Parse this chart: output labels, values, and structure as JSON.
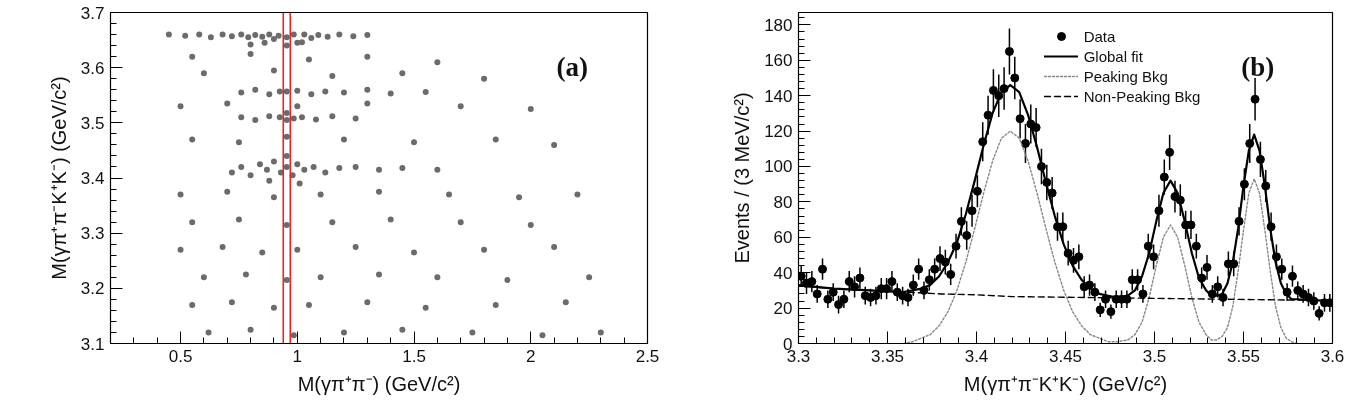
{
  "chart_data": [
    {
      "type": "scatter",
      "xlabel": "M(γπ⁺π⁻) (GeV/c²)",
      "ylabel": "M(γπ⁺π⁻K⁺K⁻) (GeV/c²)",
      "annotations": [
        "(a)"
      ],
      "color": "#6b6b6b",
      "marker": "circle",
      "x": [
        0.45,
        0.52,
        0.58,
        0.63,
        0.68,
        0.72,
        0.76,
        0.79,
        0.82,
        0.85,
        0.88,
        0.9,
        0.92,
        0.955,
        0.985,
        1.0,
        1.03,
        1.06,
        1.09,
        1.13,
        1.18,
        1.24,
        1.3,
        0.86,
        0.955,
        1.02,
        0.8,
        0.76,
        0.82,
        0.88,
        0.925,
        0.955,
        1.0,
        1.06,
        1.12,
        1.2,
        1.3,
        1.4,
        1.55,
        0.76,
        0.82,
        0.88,
        0.925,
        0.955,
        0.955,
        0.985,
        1.02,
        1.08,
        1.15,
        1.25,
        0.72,
        0.76,
        0.8,
        0.84,
        0.87,
        0.9,
        0.93,
        0.955,
        0.98,
        1.0,
        1.03,
        1.07,
        1.12,
        1.18,
        1.25,
        1.35,
        1.45,
        1.6,
        0.88,
        0.955,
        1.01,
        0.55,
        0.8,
        1.05,
        1.3,
        1.6,
        0.6,
        0.9,
        1.15,
        1.45,
        1.8,
        0.5,
        0.7,
        1.0,
        1.3,
        1.7,
        2.0,
        0.55,
        0.75,
        0.955,
        1.2,
        1.5,
        1.85,
        2.1,
        0.5,
        0.7,
        0.9,
        1.1,
        1.35,
        1.65,
        1.95,
        2.2,
        0.55,
        0.75,
        0.955,
        1.15,
        1.4,
        1.7,
        2.0,
        0.5,
        0.68,
        0.85,
        1.0,
        1.25,
        1.5,
        1.8,
        2.1,
        0.6,
        0.78,
        0.955,
        1.1,
        1.35,
        1.6,
        1.9,
        2.25,
        0.55,
        0.72,
        0.9,
        1.05,
        1.3,
        1.55,
        1.85,
        2.15,
        0.62,
        0.8,
        0.985,
        1.2,
        1.45,
        1.75,
        2.05,
        2.3
      ],
      "values": [
        3.66,
        3.658,
        3.66,
        3.655,
        3.66,
        3.657,
        3.66,
        3.655,
        3.659,
        3.656,
        3.66,
        3.652,
        3.658,
        3.655,
        3.66,
        3.645,
        3.66,
        3.654,
        3.659,
        3.656,
        3.66,
        3.657,
        3.659,
        3.645,
        3.64,
        3.646,
        3.642,
        3.555,
        3.56,
        3.552,
        3.557,
        3.557,
        3.558,
        3.552,
        3.557,
        3.555,
        3.56,
        3.553,
        3.556,
        3.51,
        3.505,
        3.512,
        3.51,
        3.505,
        3.518,
        3.508,
        3.51,
        3.506,
        3.512,
        3.508,
        3.41,
        3.42,
        3.405,
        3.425,
        3.415,
        3.43,
        3.41,
        3.42,
        3.405,
        3.425,
        3.415,
        3.42,
        3.41,
        3.418,
        3.42,
        3.415,
        3.418,
        3.415,
        3.395,
        3.44,
        3.39,
        3.62,
        3.625,
        3.615,
        3.62,
        3.61,
        3.59,
        3.595,
        3.585,
        3.59,
        3.58,
        3.53,
        3.535,
        3.53,
        3.535,
        3.53,
        3.525,
        3.47,
        3.465,
        3.475,
        3.47,
        3.465,
        3.47,
        3.46,
        3.37,
        3.375,
        3.365,
        3.37,
        3.375,
        3.37,
        3.365,
        3.37,
        3.32,
        3.325,
        3.315,
        3.32,
        3.325,
        3.32,
        3.315,
        3.27,
        3.275,
        3.265,
        3.27,
        3.275,
        3.265,
        3.27,
        3.275,
        3.22,
        3.225,
        3.215,
        3.22,
        3.225,
        3.22,
        3.215,
        3.22,
        3.17,
        3.175,
        3.165,
        3.17,
        3.175,
        3.165,
        3.17,
        3.175,
        3.12,
        3.125,
        3.115,
        3.12,
        3.125,
        3.12,
        3.115,
        3.12
      ],
      "xlim": [
        0.2,
        2.5
      ],
      "ylim": [
        3.1,
        3.7
      ],
      "xticks": [
        0.5,
        1,
        1.5,
        2,
        2.5
      ],
      "yticks": [
        3.1,
        3.2,
        3.3,
        3.4,
        3.5,
        3.6,
        3.7
      ],
      "ref_lines": [
        {
          "axis": "x",
          "value": 0.94,
          "color": "#e8242b"
        },
        {
          "axis": "x",
          "value": 0.97,
          "color": "#e8242b"
        }
      ]
    },
    {
      "type": "scatter",
      "xlabel": "M(γπ⁺π⁻K⁺K⁻) (GeV/c²)",
      "ylabel": "Events / (3 MeV/c²)",
      "annotations": [
        "(b)"
      ],
      "legend": "top right",
      "xlim": [
        3.3,
        3.6
      ],
      "ylim": [
        0,
        187
      ],
      "xticks": [
        3.3,
        3.35,
        3.4,
        3.45,
        3.5,
        3.55,
        3.6
      ],
      "yticks": [
        0,
        20,
        40,
        60,
        80,
        100,
        120,
        140,
        160,
        180
      ],
      "series": [
        {
          "name": "Data",
          "type": "scatter",
          "color": "#000000",
          "marker": "circle",
          "x": [
            3.3015,
            3.3045,
            3.3075,
            3.3105,
            3.3135,
            3.3165,
            3.3195,
            3.3225,
            3.3255,
            3.3285,
            3.3315,
            3.3345,
            3.3375,
            3.3405,
            3.3435,
            3.3465,
            3.3495,
            3.3525,
            3.3555,
            3.3585,
            3.3615,
            3.3645,
            3.3675,
            3.3705,
            3.3735,
            3.3765,
            3.3795,
            3.3825,
            3.3855,
            3.3885,
            3.3915,
            3.3945,
            3.3975,
            3.4005,
            3.4035,
            3.4065,
            3.4095,
            3.4125,
            3.4155,
            3.4185,
            3.4215,
            3.4245,
            3.4275,
            3.4305,
            3.4335,
            3.4365,
            3.4395,
            3.4425,
            3.4455,
            3.4485,
            3.4515,
            3.4545,
            3.4575,
            3.4605,
            3.4635,
            3.4665,
            3.4695,
            3.4725,
            3.4755,
            3.4785,
            3.4815,
            3.4845,
            3.4875,
            3.4905,
            3.4935,
            3.4965,
            3.4995,
            3.5025,
            3.5055,
            3.5085,
            3.5115,
            3.5145,
            3.5175,
            3.5205,
            3.5235,
            3.5265,
            3.5295,
            3.5325,
            3.5355,
            3.5385,
            3.5415,
            3.5445,
            3.5475,
            3.5505,
            3.5535,
            3.5565,
            3.5595,
            3.5625,
            3.5655,
            3.5685,
            3.5715,
            3.5745,
            3.5775,
            3.5805,
            3.5835,
            3.5865,
            3.5895,
            3.5925,
            3.5955,
            3.5985
          ],
          "values": [
            38,
            34,
            35,
            28,
            42,
            25,
            29,
            22,
            25,
            35,
            32,
            37,
            27,
            26,
            27,
            31,
            31,
            35,
            29,
            27,
            26,
            33,
            42,
            30,
            36,
            42,
            48,
            46,
            39,
            55,
            69,
            61,
            75,
            86,
            114,
            129,
            143,
            140,
            144,
            165,
            150,
            127,
            113,
            124,
            122,
            100,
            91,
            85,
            66,
            66,
            51,
            47,
            49,
            32,
            33,
            29,
            19,
            25,
            18,
            25,
            25,
            25,
            36,
            36,
            28,
            55,
            49,
            75,
            94,
            108,
            83,
            81,
            67,
            67,
            55,
            37,
            43,
            28,
            32,
            26,
            45,
            45,
            69,
            90,
            113,
            138,
            104,
            89,
            66,
            49,
            42,
            29,
            38,
            30,
            28,
            26,
            24,
            17,
            23,
            23
          ],
          "errors": [
            6,
            6,
            6,
            5,
            6,
            5,
            5,
            5,
            5,
            6,
            6,
            6,
            5,
            5,
            5,
            6,
            6,
            6,
            5,
            5,
            5,
            6,
            6,
            5,
            6,
            6,
            7,
            7,
            6,
            7,
            8,
            8,
            9,
            9,
            11,
            11,
            12,
            12,
            12,
            13,
            12,
            11,
            11,
            11,
            11,
            10,
            10,
            9,
            8,
            8,
            7,
            7,
            7,
            6,
            6,
            5,
            4,
            5,
            4,
            5,
            5,
            5,
            6,
            6,
            5,
            7,
            7,
            9,
            10,
            10,
            9,
            9,
            8,
            8,
            7,
            6,
            7,
            5,
            6,
            5,
            7,
            7,
            8,
            9,
            11,
            12,
            10,
            9,
            8,
            7,
            6,
            5,
            6,
            5,
            5,
            5,
            5,
            4,
            5,
            5
          ]
        },
        {
          "name": "Global fit",
          "type": "line",
          "color": "#000000",
          "line_style": "solid",
          "x": [
            3.3,
            3.32,
            3.34,
            3.359,
            3.364,
            3.369,
            3.374,
            3.379,
            3.384,
            3.389,
            3.394,
            3.399,
            3.404,
            3.409,
            3.414,
            3.419,
            3.424,
            3.429,
            3.434,
            3.439,
            3.444,
            3.449,
            3.454,
            3.459,
            3.464,
            3.469,
            3.474,
            3.479,
            3.485,
            3.489,
            3.493,
            3.497,
            3.501,
            3.505,
            3.509,
            3.513,
            3.517,
            3.521,
            3.525,
            3.529,
            3.532,
            3.535,
            3.538,
            3.541,
            3.544,
            3.547,
            3.55,
            3.553,
            3.556,
            3.559,
            3.562,
            3.565,
            3.568,
            3.571,
            3.574,
            3.577,
            3.58,
            3.6
          ],
          "values": [
            33,
            31,
            30,
            29,
            30,
            31,
            33,
            38,
            46,
            57,
            73,
            92,
            112,
            130,
            142,
            146,
            142,
            129,
            111,
            91,
            72,
            56,
            44,
            36,
            31,
            28,
            27,
            26,
            27,
            30,
            38,
            51,
            69,
            85,
            92,
            85,
            69,
            51,
            37,
            30,
            27,
            27,
            28,
            34,
            46,
            65,
            89,
            109,
            118,
            109,
            89,
            65,
            46,
            34,
            28,
            25,
            25,
            24
          ]
        },
        {
          "name": "Peaking Bkg",
          "type": "line",
          "color": "#888888",
          "line_style": "dotted",
          "x": [
            3.359,
            3.364,
            3.369,
            3.374,
            3.379,
            3.384,
            3.389,
            3.394,
            3.399,
            3.404,
            3.409,
            3.414,
            3.419,
            3.424,
            3.429,
            3.434,
            3.439,
            3.444,
            3.449,
            3.454,
            3.459,
            3.464,
            3.469,
            3.474,
            3.479,
            3.485,
            3.489,
            3.493,
            3.497,
            3.501,
            3.505,
            3.509,
            3.513,
            3.517,
            3.521,
            3.525,
            3.529,
            3.532,
            3.535,
            3.538,
            3.541,
            3.544,
            3.547,
            3.55,
            3.553,
            3.556,
            3.559,
            3.562,
            3.565,
            3.568,
            3.571,
            3.574,
            3.577,
            3.58
          ],
          "values": [
            0,
            1,
            3,
            5,
            10,
            18,
            30,
            46,
            65,
            85,
            103,
            116,
            120,
            116,
            103,
            85,
            65,
            46,
            30,
            18,
            10,
            5,
            3,
            1,
            1,
            2,
            5,
            12,
            26,
            44,
            60,
            67,
            60,
            44,
            26,
            12,
            5,
            2,
            2,
            4,
            9,
            21,
            41,
            64,
            85,
            93,
            85,
            64,
            41,
            21,
            9,
            3,
            1,
            0
          ]
        },
        {
          "name": "Non-Peaking Bkg",
          "type": "line",
          "color": "#000000",
          "line_style": "dashed",
          "x": [
            3.3,
            3.32,
            3.34,
            3.36,
            3.38,
            3.4,
            3.42,
            3.46,
            3.5,
            3.54,
            3.58,
            3.6
          ],
          "values": [
            32.5,
            31,
            30,
            29,
            28,
            27.5,
            26.5,
            26,
            25.5,
            25,
            24.5,
            24
          ]
        }
      ]
    }
  ]
}
